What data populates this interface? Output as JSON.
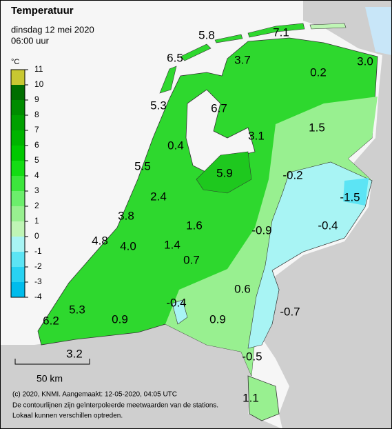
{
  "header": {
    "title": "Temperatuur",
    "date": "dinsdag 12 mei 2020",
    "time": "06:00 uur"
  },
  "legend": {
    "unit": "°C",
    "ticks": [
      11,
      10,
      9,
      8,
      7,
      6,
      5,
      4,
      3,
      2,
      1,
      0,
      -1,
      -2,
      -3,
      -4
    ],
    "colors": [
      "#c8c832",
      "#006e00",
      "#008c00",
      "#00a000",
      "#00b400",
      "#00c800",
      "#14dc14",
      "#3ce63c",
      "#6cee6c",
      "#98f090",
      "#bff5b5",
      "#a8f4f4",
      "#5ce4f4",
      "#28d2f2",
      "#00bcec"
    ]
  },
  "stations": [
    "5.8",
    "7.1",
    "6.5",
    "3.7",
    "0.2",
    "3.0",
    "5.3",
    "6.7",
    "1.5",
    "0.4",
    "3.1",
    "5.5",
    "5.9",
    "-0.2",
    "-1.5",
    "2.4",
    "3.8",
    "1.6",
    "-0.9",
    "-0.4",
    "4.8",
    "4.0",
    "1.4",
    "0.7",
    "0.6",
    "-0.4",
    "-0.7",
    "5.3",
    "6.2",
    "0.9",
    "0.9",
    "-0.5",
    "3.2",
    "1.1"
  ],
  "scale": "50 km",
  "footer": [
    "(c) 2020, KNMI. Aangemaakt: 12-05-2020, 04:05 UTC",
    "De contourlijnen zijn geïnterpoleerde meetwaarden van de stations.",
    "Lokaal kunnen verschillen optreden."
  ]
}
